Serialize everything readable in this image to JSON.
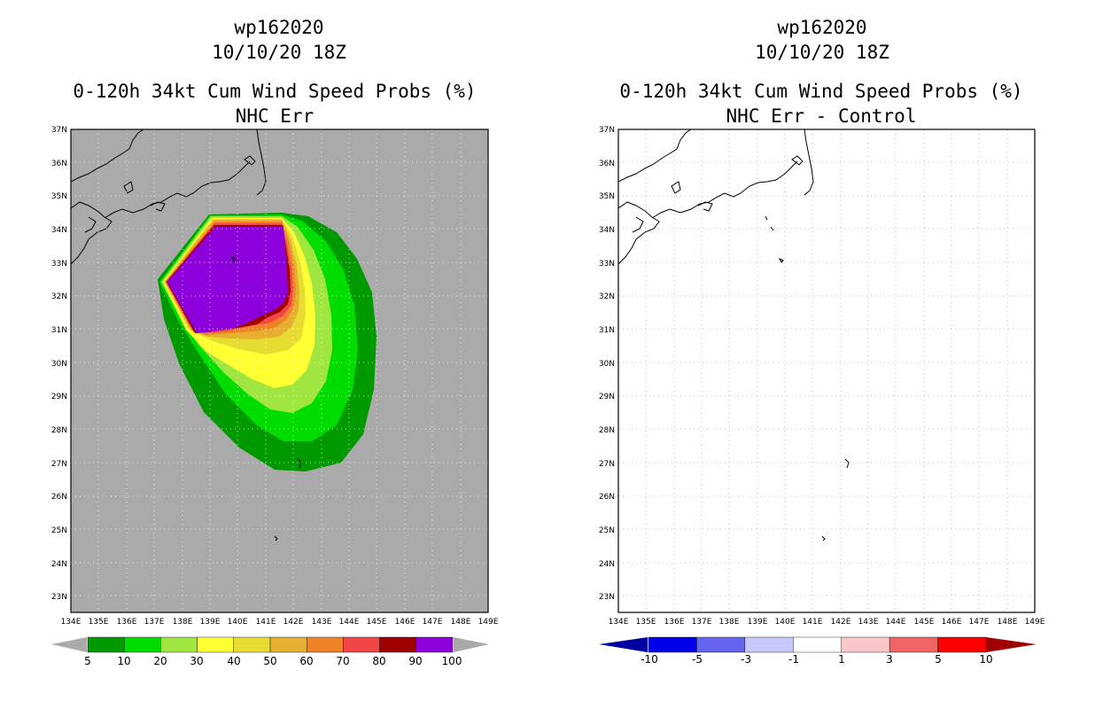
{
  "panels": [
    {
      "id": "left",
      "storm_id": "wp162020",
      "datetime": "10/10/20 18Z",
      "product": "0-120h 34kt Cum Wind Speed Probs (%)",
      "subtitle": "NHC Err",
      "lat_labels": [
        "37N",
        "36N",
        "35N",
        "34N",
        "33N",
        "32N",
        "31N",
        "30N",
        "29N",
        "28N",
        "27N",
        "26N",
        "25N",
        "24N",
        "23N"
      ],
      "lon_labels": [
        "134E",
        "135E",
        "136E",
        "137E",
        "138E",
        "139E",
        "140E",
        "141E",
        "142E",
        "143E",
        "144E",
        "145E",
        "146E",
        "147E",
        "148E",
        "149E"
      ],
      "colorbar": {
        "labels": [
          "5",
          "10",
          "20",
          "30",
          "40",
          "50",
          "60",
          "70",
          "80",
          "90",
          "100"
        ],
        "colors": [
          "#009900",
          "#00dd00",
          "#a0e640",
          "#ffff33",
          "#e6dc32",
          "#e6af2d",
          "#f08228",
          "#f04646",
          "#a00000",
          "#8c00dc"
        ],
        "under_color": "#aaaaaa",
        "over_color": "#aaaaaa"
      },
      "background_color": "#aaaaaa"
    },
    {
      "id": "right",
      "storm_id": "wp162020",
      "datetime": "10/10/20 18Z",
      "product": "0-120h 34kt Cum Wind Speed Probs (%)",
      "subtitle": "NHC Err - Control",
      "lat_labels": [
        "37N",
        "36N",
        "35N",
        "34N",
        "33N",
        "32N",
        "31N",
        "30N",
        "29N",
        "28N",
        "27N",
        "26N",
        "25N",
        "24N",
        "23N"
      ],
      "lon_labels": [
        "134E",
        "135E",
        "136E",
        "137E",
        "138E",
        "139E",
        "140E",
        "141E",
        "142E",
        "143E",
        "144E",
        "145E",
        "146E",
        "147E",
        "148E",
        "149E"
      ],
      "colorbar": {
        "labels": [
          "-10",
          "-5",
          "-3",
          "-1",
          "1",
          "3",
          "5",
          "10"
        ],
        "colors": [
          "#0000e6",
          "#6464f0",
          "#c8c8fa",
          "#ffffff",
          "#fac8c8",
          "#f06464",
          "#ff0000"
        ],
        "under_color": "#0000a0",
        "over_color": "#a00000"
      },
      "background_color": "#ffffff"
    }
  ]
}
